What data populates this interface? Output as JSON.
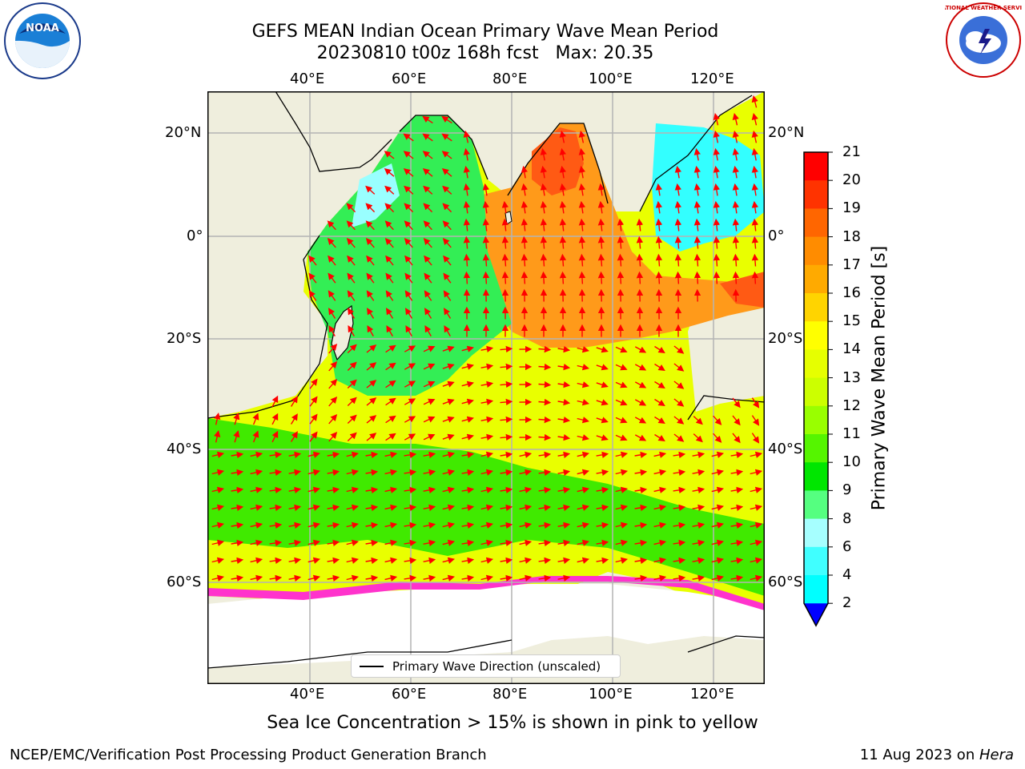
{
  "title_line1": "GEFS MEAN Indian Ocean Primary Wave Mean Period",
  "title_line2": "20230810 t00z 168h fcst   Max: 20.35",
  "lon_ticks": [
    "40°E",
    "60°E",
    "80°E",
    "100°E",
    "120°E"
  ],
  "lat_ticks_left": [
    "20°N",
    "0°",
    "20°S",
    "40°S",
    "60°S"
  ],
  "lat_ticks_right": [
    "20°N",
    "0°",
    "20°S",
    "40°S",
    "60°S"
  ],
  "colorbar": {
    "label": "Primary Wave Mean Period [s]",
    "ticks": [
      "21",
      "20",
      "19",
      "18",
      "17",
      "16",
      "15",
      "14",
      "13",
      "12",
      "11",
      "10",
      "9",
      "8",
      "6",
      "4",
      "2"
    ],
    "colors": [
      "#ff0000",
      "#ff3300",
      "#ff6600",
      "#ff8c00",
      "#ffaa00",
      "#ffd400",
      "#ffff00",
      "#e6ff00",
      "#ccff00",
      "#99ff00",
      "#55f500",
      "#00e600",
      "#55ff80",
      "#a6ffff",
      "#40ffff",
      "#00ffff",
      "#0080ff"
    ],
    "under_color": "#0000ff"
  },
  "legend_text": "Primary Wave Direction (unscaled)",
  "subtitle": "Sea Ice Concentration > 15% is shown in pink to yellow",
  "footer_left": "NCEP/EMC/Verification Post Processing Product Generation Branch",
  "footer_date": "11 Aug 2023 on ",
  "footer_machine": "Hera",
  "logos": {
    "left": "NOAA",
    "right_text": "NATIONAL WEATHER SERVICE"
  }
}
